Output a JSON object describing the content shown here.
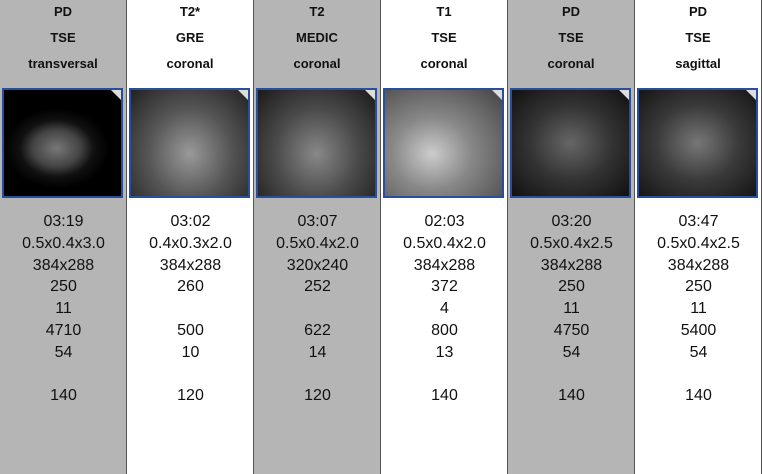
{
  "table": {
    "columns": [
      {
        "header": [
          "PD",
          "TSE",
          "transversal"
        ]
      },
      {
        "header": [
          "T2*",
          "GRE",
          "coronal"
        ]
      },
      {
        "header": [
          "T2",
          "MEDIC",
          "coronal"
        ]
      },
      {
        "header": [
          "T1",
          "TSE",
          "coronal"
        ]
      },
      {
        "header": [
          "PD",
          "TSE",
          "coronal"
        ]
      },
      {
        "header": [
          "PD",
          "TSE",
          "sagittal"
        ]
      }
    ],
    "rows": [
      [
        "03:19",
        "03:02",
        "03:07",
        "02:03",
        "03:20",
        "03:47"
      ],
      [
        "0.5x0.4x3.0",
        "0.4x0.3x2.0",
        "0.5x0.4x2.0",
        "0.5x0.4x2.0",
        "0.5x0.4x2.5",
        "0.5x0.4x2.5"
      ],
      [
        "384x288",
        "384x288",
        "320x240",
        "384x288",
        "384x288",
        "384x288"
      ],
      [
        "250",
        "260",
        "252",
        "372",
        "250",
        "250"
      ],
      [
        "11",
        null,
        null,
        "4",
        "11",
        "11"
      ],
      [
        "4710",
        "500",
        "622",
        "800",
        "4750",
        "5400"
      ],
      [
        "54",
        "10",
        "14",
        "13",
        "54",
        "54"
      ],
      [
        null,
        null,
        null,
        null,
        null,
        null
      ],
      [
        "140",
        "120",
        "120",
        "140",
        "140",
        "140"
      ]
    ]
  }
}
